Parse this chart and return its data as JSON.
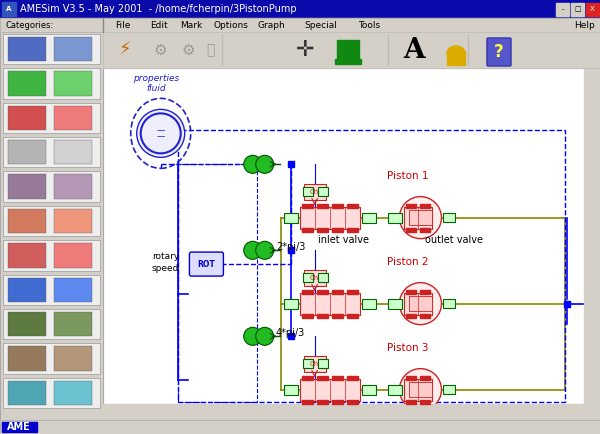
{
  "title_bar": "AMESim V3.5 - May 2001  - /home/fcherpin/3PistonPump",
  "title_bar_bg": "#0a0aaa",
  "title_bar_fg": "#ffffff",
  "window_bg": "#d4d0c8",
  "canvas_bg": "#ffffff",
  "menu_items": [
    "File",
    "Edit",
    "Mark",
    "Options",
    "Graph",
    "Special",
    "Tools"
  ],
  "categories_label": "Categories:",
  "help_label": "Help",
  "fig_width": 6.0,
  "fig_height": 4.34,
  "dashed_box_color": "#0000ff",
  "component_color_red": "#cc2222",
  "component_color_green": "#00aa00",
  "component_color_blue": "#0000cc",
  "wire_color_olive": "#888800",
  "wire_color_blue": "#0000ff",
  "statusbar_bg": "#0000cc",
  "statusbar_text": "AME",
  "statusbar_text_color": "#ffffff"
}
